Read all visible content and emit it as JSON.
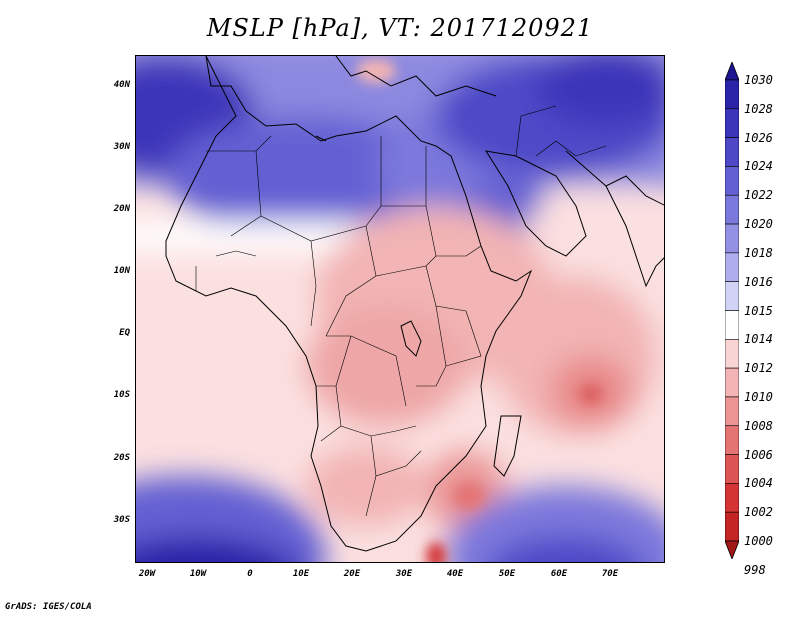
{
  "title": "MSLP [hPa], VT: 2017120921",
  "footer": "GrADS: IGES/COLA",
  "lat_labels": [
    "40N",
    "30N",
    "20N",
    "10N",
    "EQ",
    "10S",
    "20S",
    "30S"
  ],
  "lon_labels": [
    "20W",
    "10W",
    "0",
    "10E",
    "20E",
    "30E",
    "40E",
    "50E",
    "60E",
    "70E"
  ],
  "colorbar": {
    "levels": [
      "1030",
      "1028",
      "1026",
      "1024",
      "1022",
      "1020",
      "1018",
      "1016",
      "1015",
      "1014",
      "1012",
      "1010",
      "1008",
      "1006",
      "1004",
      "1002",
      "1000",
      "998"
    ],
    "colors": [
      "#1c1493",
      "#2b24a8",
      "#3c35b9",
      "#4e48c7",
      "#6460d3",
      "#7b78dc",
      "#9391e3",
      "#aeaeec",
      "#d2d2f6",
      "#ffffff",
      "#f8d4d4",
      "#f2b4b4",
      "#ea9494",
      "#e47474",
      "#dc5454",
      "#d43434",
      "#c42424",
      "#a01818"
    ]
  },
  "chart_data": {
    "type": "heatmap",
    "title": "MSLP [hPa], VT: 2017120921",
    "units": "hPa",
    "valid_time": "2017120921",
    "lon_range": [
      "20W",
      "70E"
    ],
    "lat_range": [
      "35S",
      "45N"
    ],
    "x_ticks": [
      "20W",
      "10W",
      "0",
      "10E",
      "20E",
      "30E",
      "40E",
      "50E",
      "60E",
      "70E"
    ],
    "y_ticks": [
      "40N",
      "30N",
      "20N",
      "10N",
      "EQ",
      "10S",
      "20S",
      "30S"
    ],
    "colorbar_levels": [
      1030,
      1028,
      1026,
      1024,
      1022,
      1020,
      1018,
      1016,
      1015,
      1014,
      1012,
      1010,
      1008,
      1006,
      1004,
      1002,
      1000,
      998
    ],
    "regions": [
      {
        "name": "Mediterranean / North Africa high",
        "approx_value": 1024
      },
      {
        "name": "Atlantic high near 40N",
        "approx_value": 1028
      },
      {
        "name": "Central Asia high",
        "approx_value": 1028
      },
      {
        "name": "Equatorial Africa trough",
        "approx_value": 1010
      },
      {
        "name": "Indian Ocean low near 10S 65E",
        "approx_value": 1008
      },
      {
        "name": "Mozambique Channel low",
        "approx_value": 1008
      },
      {
        "name": "South Atlantic high",
        "approx_value": 1026
      },
      {
        "name": "South Indian Ocean high",
        "approx_value": 1024
      }
    ]
  }
}
